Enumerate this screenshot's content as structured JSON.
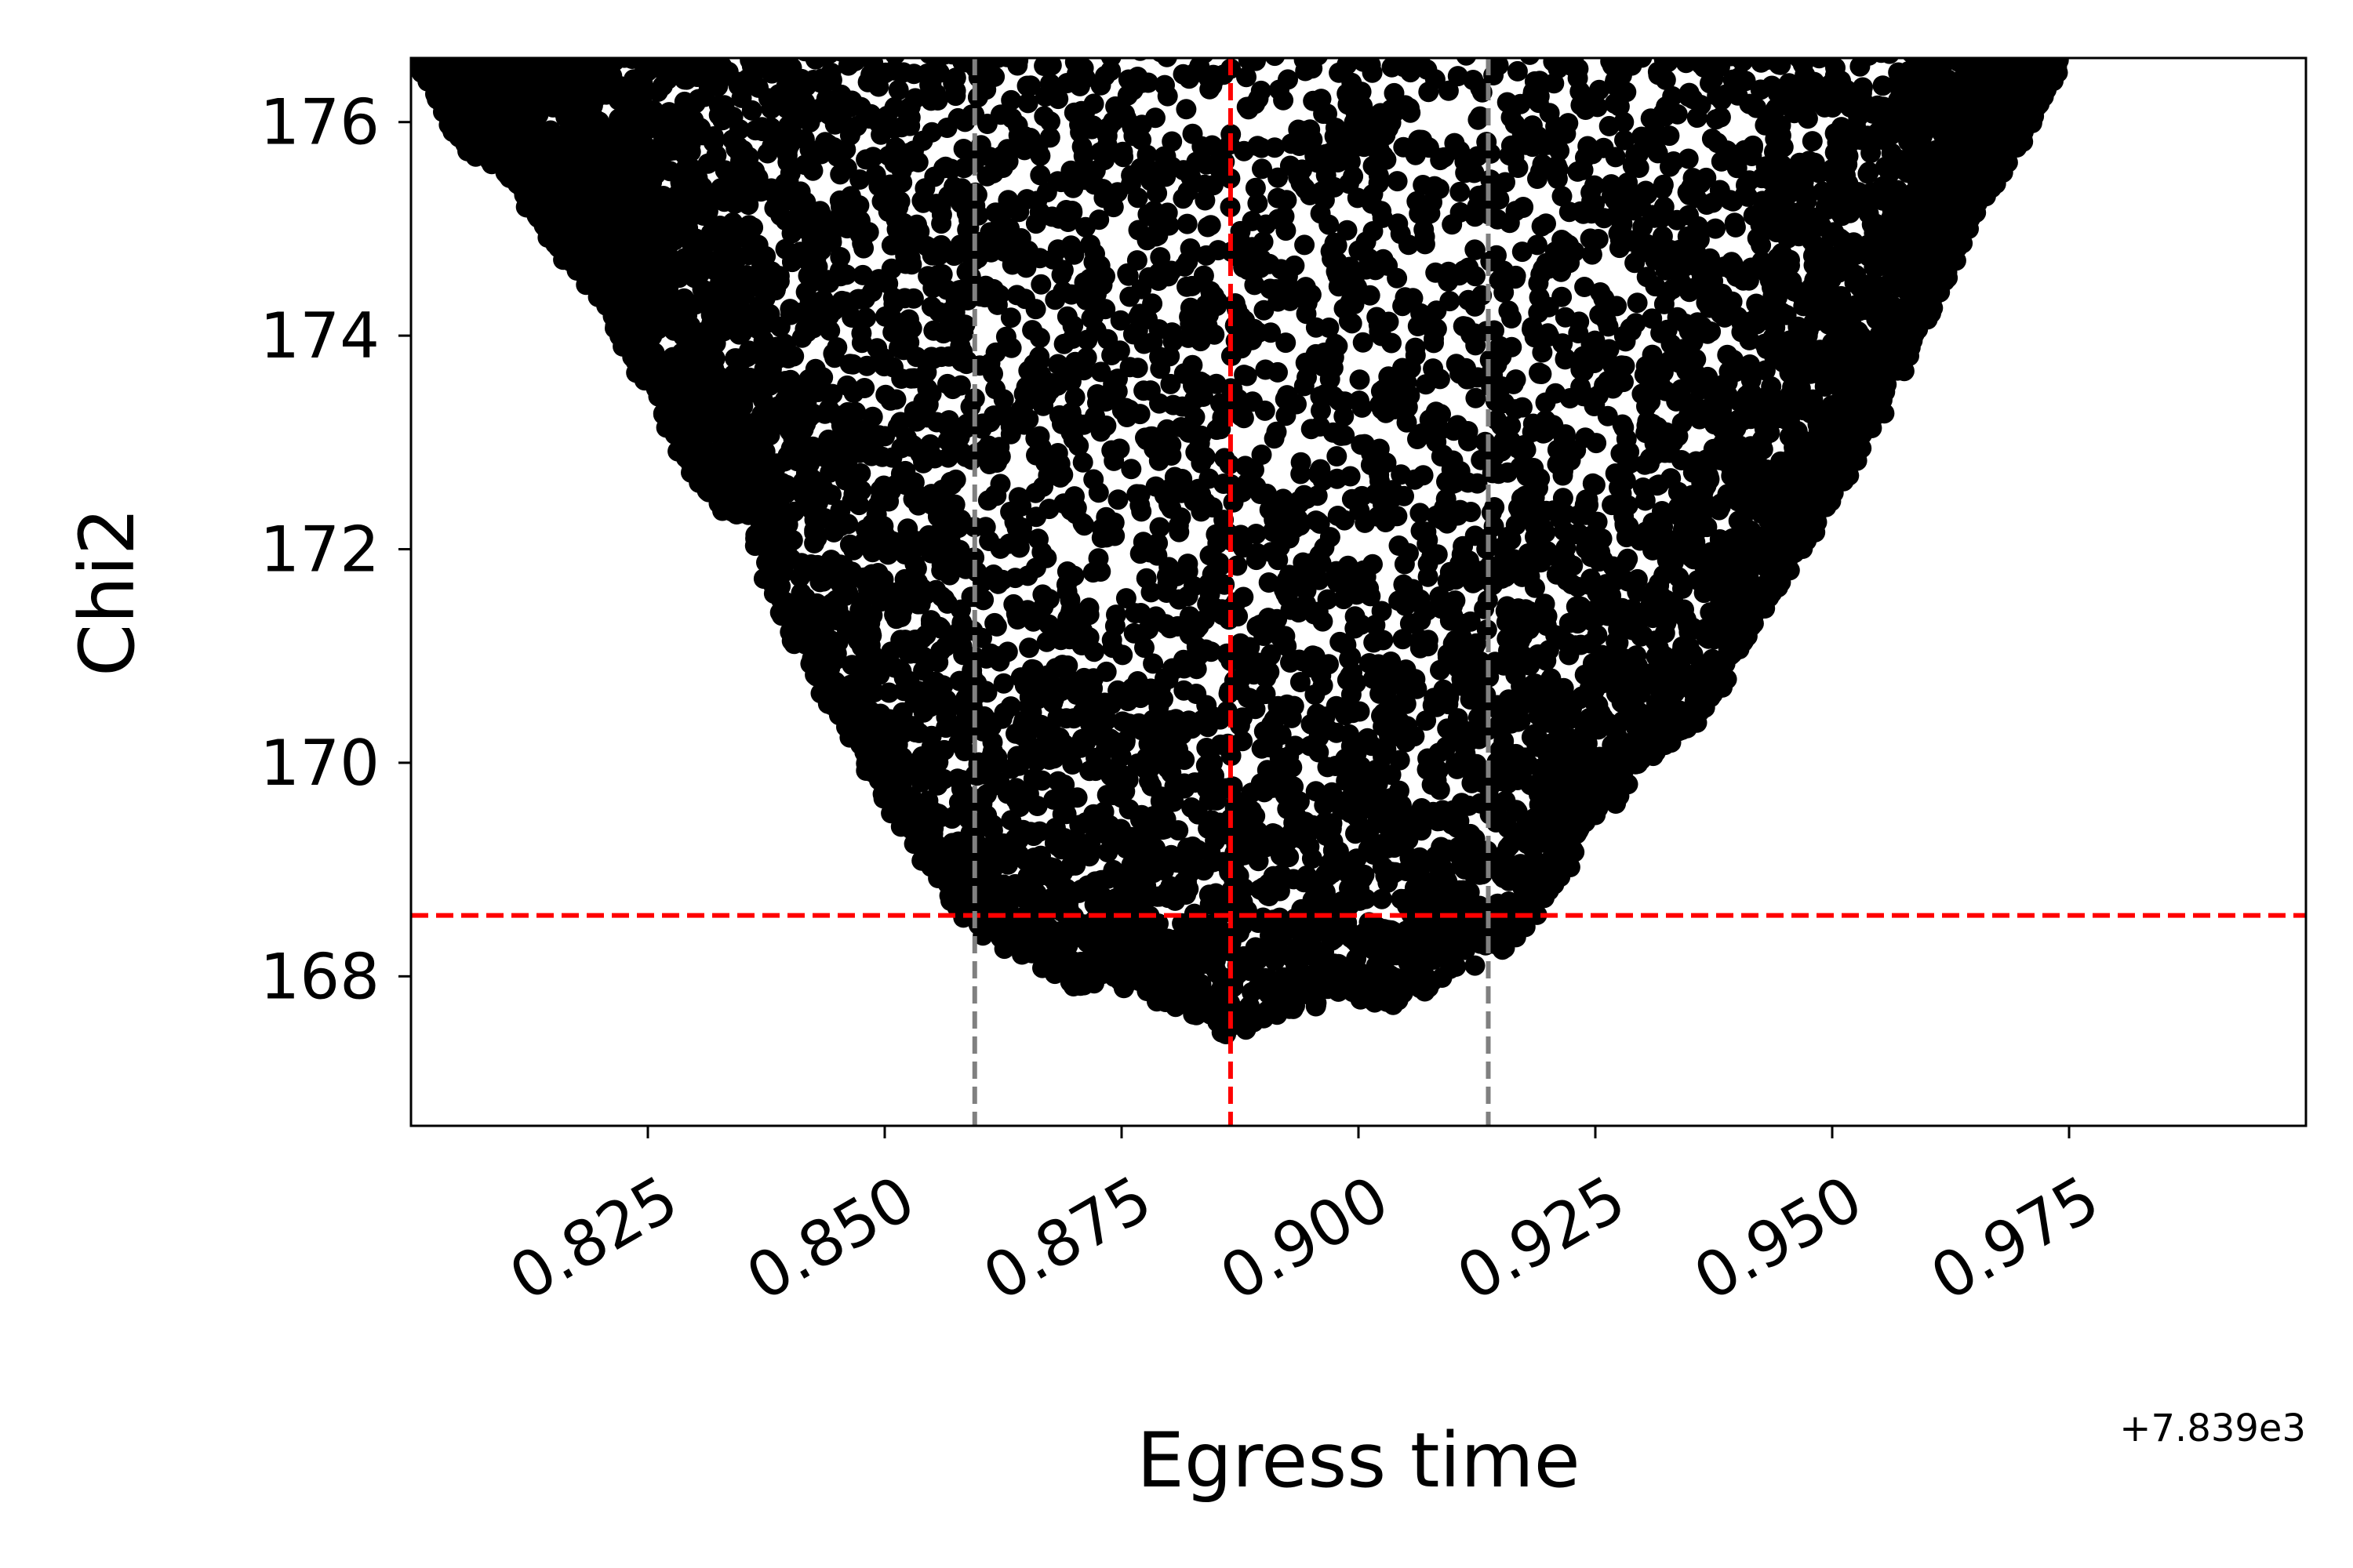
{
  "chart_data": {
    "type": "scatter",
    "title": "",
    "xlabel": "Egress time",
    "ylabel": "Chi2",
    "x_offset_label": "+7.839e3",
    "x_offset": 7839,
    "xlim": [
      0.8,
      1.0
    ],
    "ylim": [
      166.6,
      176.6
    ],
    "xticks": [
      0.825,
      0.85,
      0.875,
      0.9,
      0.925,
      0.95,
      0.975
    ],
    "xtick_labels": [
      "0.825",
      "0.850",
      "0.875",
      "0.900",
      "0.925",
      "0.950",
      "0.975"
    ],
    "yticks": [
      168,
      170,
      172,
      174,
      176
    ],
    "ytick_labels": [
      "168",
      "170",
      "172",
      "174",
      "176"
    ],
    "grid": false,
    "marker_color": "#000000",
    "series": [
      {
        "description": "scatter of sampled egress times vs chi2, lower envelope approx chi2_min + k*(x - x_best)^2",
        "chi2_min": 167.5,
        "x_best": 0.8865,
        "point_count": 9000,
        "lower_envelope": [
          [
            0.801,
            176.6
          ],
          [
            0.805,
            175.9
          ],
          [
            0.81,
            175.6
          ],
          [
            0.815,
            174.9
          ],
          [
            0.82,
            174.4
          ],
          [
            0.825,
            173.5
          ],
          [
            0.83,
            172.7
          ],
          [
            0.835,
            172.3
          ],
          [
            0.84,
            171.2
          ],
          [
            0.845,
            170.5
          ],
          [
            0.85,
            169.7
          ],
          [
            0.855,
            169.0
          ],
          [
            0.86,
            168.5
          ],
          [
            0.865,
            168.2
          ],
          [
            0.87,
            168.0
          ],
          [
            0.875,
            168.0
          ],
          [
            0.88,
            167.8
          ],
          [
            0.8865,
            167.5
          ],
          [
            0.89,
            167.7
          ],
          [
            0.895,
            167.8
          ],
          [
            0.9,
            167.9
          ],
          [
            0.905,
            167.8
          ],
          [
            0.91,
            168.1
          ],
          [
            0.915,
            168.3
          ],
          [
            0.92,
            168.8
          ],
          [
            0.925,
            169.5
          ],
          [
            0.93,
            170.0
          ],
          [
            0.935,
            170.4
          ],
          [
            0.94,
            171.0
          ],
          [
            0.945,
            171.8
          ],
          [
            0.95,
            172.5
          ],
          [
            0.955,
            173.3
          ],
          [
            0.96,
            174.2
          ],
          [
            0.965,
            175.2
          ],
          [
            0.97,
            175.9
          ],
          [
            0.974,
            176.6
          ]
        ]
      }
    ],
    "reference_lines": [
      {
        "orientation": "vertical",
        "x": 0.8865,
        "color": "#ff0000",
        "style": "dashed"
      },
      {
        "orientation": "horizontal",
        "y": 168.57,
        "color": "#ff0000",
        "style": "dashed"
      },
      {
        "orientation": "vertical",
        "x": 0.8595,
        "color": "#808080",
        "style": "dashed"
      },
      {
        "orientation": "vertical",
        "x": 0.9137,
        "color": "#808080",
        "style": "dashed"
      }
    ]
  }
}
